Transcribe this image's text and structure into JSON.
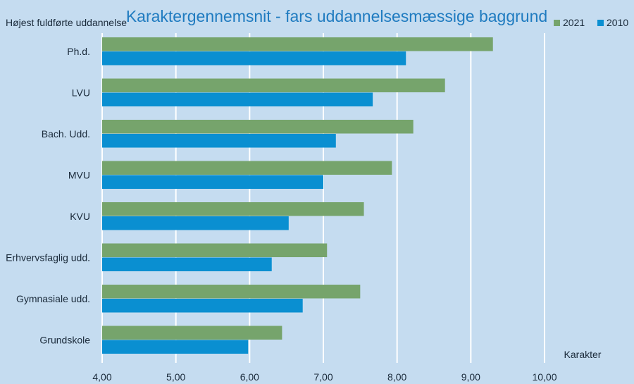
{
  "chart_data": {
    "type": "bar",
    "orientation": "horizontal",
    "title": "Karaktergennemsnit - fars uddannelsesmæssige baggrund",
    "ylabel": "Højest fuldførte uddannelse",
    "xlabel": "Karakter",
    "xlim": [
      4,
      10
    ],
    "xticks": [
      "4,00",
      "5,00",
      "6,00",
      "7,00",
      "8,00",
      "9,00",
      "10,00"
    ],
    "grid": "vertical",
    "legend_position": "top-right",
    "categories": [
      "Ph.d.",
      "LVU",
      "Bach. Udd.",
      "MVU",
      "KVU",
      "Erhvervsfaglig udd.",
      "Gymnasiale udd.",
      "Grundskole"
    ],
    "series": [
      {
        "name": "2021",
        "color": "#76a46c",
        "values": [
          9.3,
          8.65,
          8.22,
          7.93,
          7.55,
          7.05,
          7.5,
          6.44
        ]
      },
      {
        "name": "2010",
        "color": "#0a8fd1",
        "values": [
          8.12,
          7.67,
          7.17,
          7.0,
          6.53,
          6.3,
          6.72,
          5.98
        ]
      }
    ]
  }
}
